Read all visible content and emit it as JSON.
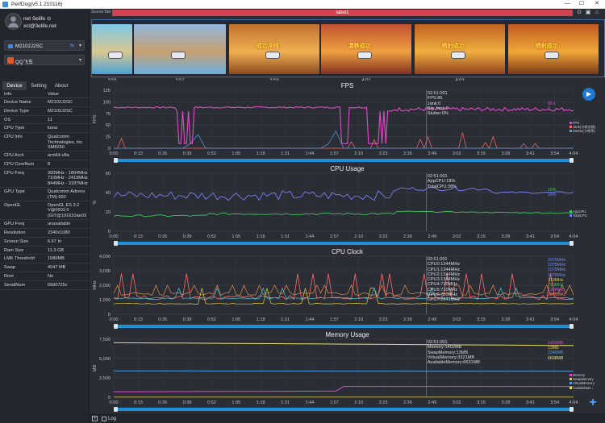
{
  "window": {
    "title": "PerfDog(v5.1.210116)",
    "minimize": "—",
    "maximize": "☐",
    "close": "✕"
  },
  "user": {
    "name": "net Selife ⊙",
    "email": "xcl@3elife.net"
  },
  "device_select": {
    "label": "M2102J2SC"
  },
  "app_select": {
    "label": "QQ飞车"
  },
  "tabs": [
    "Device",
    "Setting",
    "About"
  ],
  "info": {
    "header": {
      "key": "Info",
      "value": "Value"
    },
    "rows": [
      {
        "k": "Device Name",
        "v": "M2102J2SC"
      },
      {
        "k": "Device Type",
        "v": "M2102J2SC"
      },
      {
        "k": "OS",
        "v": "11"
      },
      {
        "k": "CPU Type",
        "v": "kona"
      },
      {
        "k": "CPU Info",
        "v": "Qualcomm\nTechnologies, Inc\nSM8250"
      },
      {
        "k": "CPU Arch",
        "v": "arm64-v8a"
      },
      {
        "k": "CPU CoreNum",
        "v": "8"
      },
      {
        "k": "CPU Freq",
        "v": "300MHz - 1804MHz\n710MHz - 2419MHz\n844MHz - 3187MHz"
      },
      {
        "k": "GPU Type",
        "v": "Qualcomm Adreno\n(TM) 650"
      },
      {
        "k": "OpenGL",
        "v": "OpenGL ES 3.2\nV@0502.0\n(GIT@191610ae03"
      },
      {
        "k": "GPU Freq",
        "v": "unavailable"
      },
      {
        "k": "Resolution",
        "v": "2340x1080"
      },
      {
        "k": "Screen Size",
        "v": "6.67 In"
      },
      {
        "k": "Ram Size",
        "v": "11.3 GB"
      },
      {
        "k": "LMK Threshold",
        "v": "1080MB"
      },
      {
        "k": "Swap",
        "v": "4047 MB"
      },
      {
        "k": "Root",
        "v": "No"
      },
      {
        "k": "SerialNum",
        "v": "69d0725c"
      }
    ]
  },
  "scene": {
    "tab_label": "SceneTab",
    "label_bar": "label1",
    "thumbs": [
      {
        "time": "3:55",
        "caption": ""
      },
      {
        "time": "3:57",
        "caption": ""
      },
      {
        "time": "3:59",
        "caption": "成功冲线"
      },
      {
        "time": "4:01",
        "caption": "漂移成功"
      },
      {
        "time": "4:03",
        "caption": "喷射成功"
      },
      {
        "time": "",
        "caption": "喷射成功"
      }
    ]
  },
  "x_ticks": [
    "0:00",
    "0:13",
    "0:26",
    "0:39",
    "0:52",
    "1:05",
    "1:18",
    "1:31",
    "1:44",
    "1:57",
    "2:10",
    "2:23",
    "2:36",
    "2:49",
    "3:02",
    "3:15",
    "3:28",
    "3:41",
    "3:54",
    "4:04"
  ],
  "cursor_time": 166,
  "panels": [
    {
      "title": "FPS",
      "ylabel": "FPS",
      "yticks": [
        "0",
        "25",
        "50",
        "75",
        "100",
        "125"
      ],
      "ymax": 125,
      "readout": [
        "02:51:001",
        "FPS:85",
        "Jank:0",
        "Big Jank:0",
        "Stutter:0%"
      ],
      "right_values": [
        {
          "text": "90.1",
          "color": "#e04bc8"
        },
        {
          "text": "0",
          "color": "#e04bc8"
        }
      ],
      "legend": [
        {
          "text": "FPS",
          "color": "#e04bc8"
        },
        {
          "text": "Jank(卡顿次数)",
          "color": "#ff6b6b"
        },
        {
          "text": "Stutter(卡顿率)",
          "color": "#4f9de0"
        }
      ]
    },
    {
      "title": "CPU Usage",
      "ylabel": "%",
      "yticks": [
        "0",
        "20",
        "40",
        "60"
      ],
      "ymax": 60,
      "readout": [
        "02:51:001",
        "AppCPU:18%",
        "TotalCPU:38%"
      ],
      "right_values": [
        {
          "text": "16%",
          "color": "#3ec45a"
        },
        {
          "text": "39%",
          "color": "#7a7ef0"
        }
      ],
      "legend": [
        {
          "text": "AppCPU",
          "color": "#3ec45a"
        },
        {
          "text": "TotalCPU",
          "color": "#7a7ef0"
        }
      ]
    },
    {
      "title": "CPU Clock",
      "ylabel": "MHz",
      "yticks": [
        "0",
        "1,000",
        "2,000",
        "3,000",
        "4,000"
      ],
      "ymax": 4000,
      "readout": [
        "02:51:001",
        "CPU0:1344MHz",
        "CPU1:1344MHz",
        "CPU2:1344MHz",
        "CPU3:1344MHz",
        "CPU4:710MHz",
        "CPU5:710MHz",
        "CPU6:710MHz",
        "CPU7:2841MHz"
      ],
      "right_values": [
        {
          "text": "1075MHz",
          "color": "#6f8ef0"
        },
        {
          "text": "1075MHz",
          "color": "#6f8ef0"
        },
        {
          "text": "1075MHz",
          "color": "#6f8ef0"
        },
        {
          "text": "1075MHz",
          "color": "#6f8ef0"
        },
        {
          "text": "710MHz",
          "color": "#e0d040"
        },
        {
          "text": "710MHz",
          "color": "#3ec45a"
        },
        {
          "text": "710MHz",
          "color": "#e04bc8"
        },
        {
          "text": "2841MHz",
          "color": "#ff6b6b"
        }
      ],
      "legend": []
    },
    {
      "title": "Memory Usage",
      "ylabel": "MB",
      "yticks": [
        "0",
        "2,500",
        "5,000",
        "7,500"
      ],
      "ymax": 7500,
      "readout": [
        "02:51:001",
        "Memory:1402MB",
        "SwapMemory:13MB",
        "VirtualMemory:3321MB",
        "AvailableMemory:6631MB"
      ],
      "right_values": [
        {
          "text": "1402MB",
          "color": "#e04bc8"
        },
        {
          "text": "13MB",
          "color": "#e0d040"
        },
        {
          "text": "3340MB",
          "color": "#4f9de0"
        },
        {
          "text": "6608MB",
          "color": "#e6e070"
        }
      ],
      "legend": [
        {
          "text": "Memory",
          "color": "#e04bc8"
        },
        {
          "text": "SwapMemory",
          "color": "#e0d040"
        },
        {
          "text": "VirtualMemory",
          "color": "#4f9de0"
        },
        {
          "text": "AvailableMe...",
          "color": "#e6e070"
        }
      ]
    }
  ],
  "bottom": {
    "log_label": "Log"
  },
  "colors": {
    "accent": "#1c8fd6",
    "label_bar": "#d3404f"
  }
}
